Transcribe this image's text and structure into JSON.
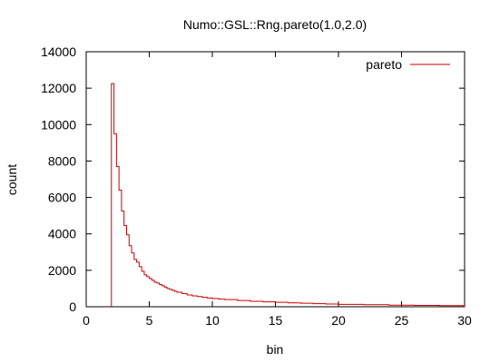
{
  "chart_data": {
    "type": "line",
    "style": "step-histogram",
    "title": "Numo::GSL::Rng.pareto(1.0,2.0)",
    "xlabel": "bin",
    "ylabel": "count",
    "xlim": [
      0,
      30
    ],
    "ylim": [
      0,
      14000
    ],
    "xticks": [
      0,
      5,
      10,
      15,
      20,
      25,
      30
    ],
    "yticks": [
      0,
      2000,
      4000,
      6000,
      8000,
      10000,
      12000,
      14000
    ],
    "grid": false,
    "legend": {
      "position": "top-right"
    },
    "series": [
      {
        "name": "pareto",
        "color": "#cc0000",
        "x": [
          2.0,
          2.2,
          2.4,
          2.6,
          2.8,
          3.0,
          3.2,
          3.4,
          3.6,
          3.8,
          4.0,
          4.2,
          4.4,
          4.6,
          4.8,
          5.0,
          5.2,
          5.4,
          5.6,
          5.8,
          6.0,
          6.2,
          6.4,
          6.6,
          6.8,
          7.0,
          7.2,
          7.6,
          8.0,
          8.4,
          8.8,
          9.2,
          9.6,
          10.0,
          10.5,
          11.0,
          12.0,
          13.0,
          14.0,
          15.0,
          16.0,
          17.0,
          18.0,
          19.0,
          20.0,
          22.0,
          24.0,
          26.0,
          28.0,
          30.0
        ],
        "values": [
          12250,
          9500,
          7700,
          6400,
          5250,
          4450,
          3950,
          3350,
          2950,
          2600,
          2450,
          2200,
          1950,
          1750,
          1650,
          1550,
          1450,
          1350,
          1300,
          1220,
          1150,
          1080,
          1000,
          950,
          900,
          850,
          800,
          720,
          650,
          600,
          560,
          520,
          480,
          450,
          420,
          390,
          340,
          300,
          270,
          240,
          210,
          190,
          170,
          150,
          130,
          110,
          90,
          75,
          60,
          0
        ]
      }
    ]
  }
}
